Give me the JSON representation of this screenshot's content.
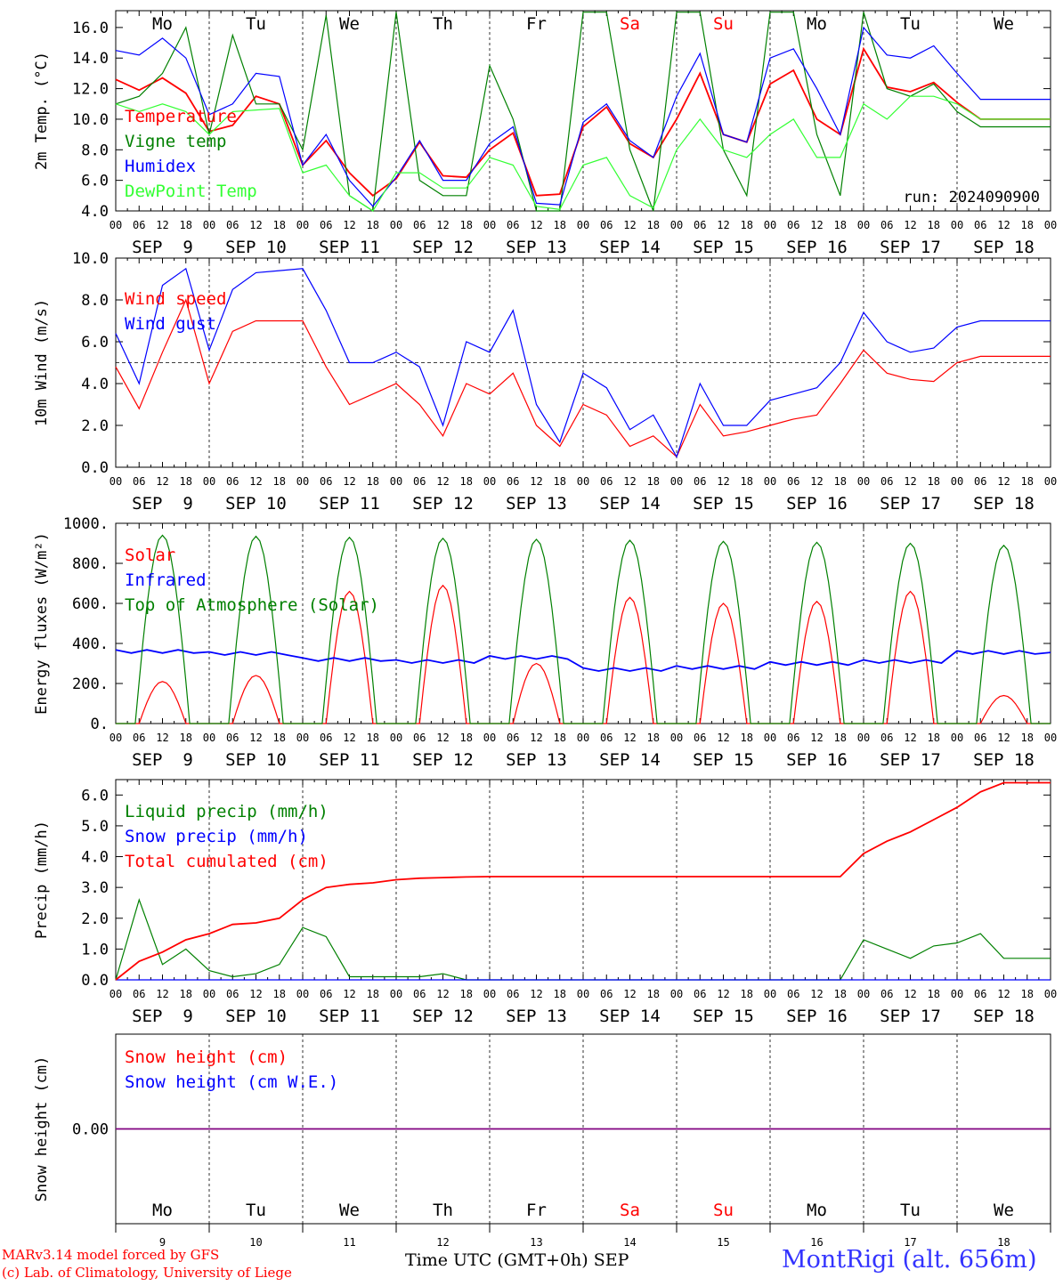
{
  "days": [
    {
      "dow": "Mo",
      "date": "SEP  9",
      "num": "9",
      "weekend": false
    },
    {
      "dow": "Tu",
      "date": "SEP 10",
      "num": "10",
      "weekend": false
    },
    {
      "dow": "We",
      "date": "SEP 11",
      "num": "11",
      "weekend": false
    },
    {
      "dow": "Th",
      "date": "SEP 12",
      "num": "12",
      "weekend": false
    },
    {
      "dow": "Fr",
      "date": "SEP 13",
      "num": "13",
      "weekend": false
    },
    {
      "dow": "Sa",
      "date": "SEP 14",
      "num": "14",
      "weekend": true
    },
    {
      "dow": "Su",
      "date": "SEP 15",
      "num": "15",
      "weekend": true
    },
    {
      "dow": "Mo",
      "date": "SEP 16",
      "num": "16",
      "weekend": false
    },
    {
      "dow": "Tu",
      "date": "SEP 17",
      "num": "17",
      "weekend": false
    },
    {
      "dow": "We",
      "date": "SEP 18",
      "num": "18",
      "weekend": false
    }
  ],
  "hour_labels": [
    "00",
    "06",
    "12",
    "18"
  ],
  "footer": {
    "credit_line1": "MARv3.14 model forced by GFS",
    "credit_line2": "(c) Lab. of Climatology, University of Liege",
    "xlabel": "Time UTC (GMT+0h)",
    "month": "SEP",
    "station": "MontRigi (alt. 656m)"
  },
  "colors": {
    "red": "#ff0000",
    "green": "#008000",
    "blue": "#0000ff",
    "lightgreen": "#33ff33",
    "purple": "#800080"
  },
  "chart_data": [
    {
      "type": "line",
      "ylabel": "2m Temp. (°C)",
      "ylim": [
        4,
        17.1
      ],
      "yticks": [
        "4.0",
        "6.0",
        "8.0",
        "10.0",
        "12.0",
        "14.0",
        "16.0"
      ],
      "annotation": "run: 2024090900",
      "x_hours": [
        0,
        6,
        12,
        18,
        24,
        30,
        36,
        42,
        48,
        54,
        60,
        66,
        72,
        78,
        84,
        90,
        96,
        102,
        108,
        114,
        120,
        126,
        132,
        138,
        144,
        150,
        156,
        162,
        168,
        174,
        180,
        186,
        192,
        198,
        204,
        210,
        216,
        222,
        228,
        234
      ],
      "series": [
        {
          "name": "Temperature",
          "color": "#ff0000",
          "values": [
            12.6,
            11.9,
            12.7,
            11.7,
            9.2,
            9.6,
            11.5,
            11.0,
            7.0,
            8.6,
            6.5,
            5.0,
            6.1,
            8.5,
            6.3,
            6.2,
            8.0,
            9.1,
            5.0,
            5.1,
            9.5,
            10.8,
            8.4,
            7.5,
            10.0,
            13.0,
            9.0,
            8.5,
            12.3,
            13.2,
            10.0,
            9.0,
            14.6,
            12.1,
            11.8,
            12.4,
            11.1,
            10.0,
            10.0,
            10.0
          ]
        },
        {
          "name": "Vigne temp",
          "color": "#008000",
          "values": [
            11.0,
            11.5,
            13.0,
            16.0,
            9.0,
            15.5,
            11.0,
            11.0,
            8.0,
            16.8,
            5.0,
            4.0,
            17.0,
            6.0,
            5.0,
            5.0,
            13.5,
            10.0,
            4.0,
            4.0,
            17.0,
            17.0,
            8.0,
            4.0,
            17.0,
            17.0,
            8.0,
            5.0,
            17.0,
            17.0,
            9.0,
            5.0,
            17.0,
            12.0,
            11.5,
            12.3,
            10.5,
            9.5,
            9.5,
            9.5
          ]
        },
        {
          "name": "Humidex",
          "color": "#0000ff",
          "values": [
            14.5,
            14.2,
            15.3,
            14.0,
            10.3,
            11.0,
            13.0,
            12.8,
            7.0,
            9.0,
            6.0,
            4.3,
            6.2,
            8.6,
            6.0,
            6.0,
            8.4,
            9.5,
            4.5,
            4.4,
            9.8,
            11.0,
            8.6,
            7.5,
            11.5,
            14.3,
            9.0,
            8.5,
            14.0,
            14.6,
            12.0,
            9.0,
            16.0,
            14.2,
            14.0,
            14.8,
            13.0,
            11.3,
            11.3,
            11.3
          ]
        },
        {
          "name": "DewPoint Temp",
          "color": "#33ff33",
          "values": [
            11.0,
            10.5,
            11.0,
            10.5,
            9.0,
            10.5,
            10.6,
            10.7,
            6.5,
            7.0,
            5.0,
            4.0,
            6.5,
            6.5,
            5.5,
            5.5,
            7.5,
            7.0,
            4.3,
            4.1,
            7.0,
            7.5,
            5.0,
            4.2,
            8.0,
            10.0,
            8.0,
            7.5,
            9.0,
            10.0,
            7.5,
            7.5,
            11.0,
            10.0,
            11.5,
            11.5,
            11.0,
            10.0,
            10.0,
            10.0
          ]
        }
      ]
    },
    {
      "type": "line",
      "ylabel": "10m Wind (m/s)",
      "ylim": [
        0,
        10
      ],
      "yticks": [
        "0.0",
        "2.0",
        "4.0",
        "6.0",
        "8.0",
        "10.0"
      ],
      "ref_line": 5,
      "x_hours": [
        0,
        6,
        12,
        18,
        24,
        30,
        36,
        42,
        48,
        54,
        60,
        66,
        72,
        78,
        84,
        90,
        96,
        102,
        108,
        114,
        120,
        126,
        132,
        138,
        144,
        150,
        156,
        162,
        168,
        174,
        180,
        186,
        192,
        198,
        204,
        210,
        216,
        222,
        228,
        234
      ],
      "series": [
        {
          "name": "Wind speed",
          "color": "#ff0000",
          "values": [
            4.8,
            2.8,
            5.5,
            8.0,
            4.0,
            6.5,
            7.0,
            7.0,
            7.0,
            4.8,
            3.0,
            3.5,
            4.0,
            3.0,
            1.5,
            4.0,
            3.5,
            4.5,
            2.0,
            1.0,
            3.0,
            2.5,
            1.0,
            1.5,
            0.5,
            3.0,
            1.5,
            1.7,
            2.0,
            2.3,
            2.5,
            4.0,
            5.6,
            4.5,
            4.2,
            4.1,
            5.0,
            5.3,
            5.3,
            5.3
          ]
        },
        {
          "name": "Wind gust",
          "color": "#0000ff",
          "values": [
            6.4,
            4.0,
            8.7,
            9.5,
            5.6,
            8.5,
            9.3,
            9.4,
            9.5,
            7.5,
            5.0,
            5.0,
            5.5,
            4.8,
            2.0,
            6.0,
            5.5,
            7.5,
            3.0,
            1.2,
            4.5,
            3.8,
            1.8,
            2.5,
            0.5,
            4.0,
            2.0,
            2.0,
            3.2,
            3.5,
            3.8,
            5.0,
            7.4,
            6.0,
            5.5,
            5.7,
            6.7,
            7.0,
            7.0,
            7.0
          ]
        }
      ]
    },
    {
      "type": "line",
      "ylabel": "Energy fluxes (W/m²)",
      "ylim": [
        0,
        1000
      ],
      "yticks": [
        "0.",
        "200.",
        "400.",
        "600.",
        "800.",
        "1000."
      ],
      "series": [
        {
          "name": "Solar",
          "color": "#ff0000",
          "daily_peak": [
            210,
            240,
            660,
            690,
            300,
            630,
            600,
            610,
            660,
            140
          ]
        },
        {
          "name": "Infrared",
          "color": "#0000ff",
          "daily_mean": [
            360,
            350,
            320,
            310,
            330,
            270,
            280,
            300,
            310,
            355
          ]
        },
        {
          "name": "Top of Atmosphere (Solar)",
          "color": "#008000",
          "daily_peak": [
            940,
            935,
            930,
            925,
            920,
            915,
            910,
            905,
            900,
            890
          ]
        }
      ]
    },
    {
      "type": "line",
      "ylabel": "Precip (mm/h)",
      "ylim": [
        0,
        6.5
      ],
      "yticks": [
        "0.0",
        "1.0",
        "2.0",
        "3.0",
        "4.0",
        "5.0",
        "6.0"
      ],
      "x_hours": [
        0,
        6,
        12,
        18,
        24,
        30,
        36,
        42,
        48,
        54,
        60,
        66,
        72,
        78,
        84,
        90,
        96,
        102,
        108,
        114,
        120,
        126,
        132,
        138,
        144,
        150,
        156,
        162,
        168,
        174,
        180,
        186,
        192,
        198,
        204,
        210,
        216,
        222,
        228,
        234
      ],
      "series": [
        {
          "name": "Liquid precip (mm/h)",
          "color": "#008000",
          "values": [
            0.0,
            2.6,
            0.5,
            1.0,
            0.3,
            0.1,
            0.2,
            0.5,
            1.7,
            1.4,
            0.1,
            0.1,
            0.1,
            0.1,
            0.2,
            0.0,
            0.0,
            0.0,
            0.0,
            0.0,
            0.0,
            0.0,
            0.0,
            0.0,
            0.0,
            0.0,
            0.0,
            0.0,
            0.0,
            0.0,
            0.0,
            0.0,
            1.3,
            1.0,
            0.7,
            1.1,
            1.2,
            1.5,
            0.7,
            0.7
          ]
        },
        {
          "name": "Snow precip (mm/h)",
          "color": "#0000ff",
          "values": [
            0,
            0,
            0,
            0,
            0,
            0,
            0,
            0,
            0,
            0,
            0,
            0,
            0,
            0,
            0,
            0,
            0,
            0,
            0,
            0,
            0,
            0,
            0,
            0,
            0,
            0,
            0,
            0,
            0,
            0,
            0,
            0,
            0,
            0,
            0,
            0,
            0,
            0,
            0,
            0
          ]
        },
        {
          "name": "Total cumulated (cm)",
          "color": "#ff0000",
          "values": [
            0.0,
            0.6,
            0.9,
            1.3,
            1.5,
            1.8,
            1.85,
            2.0,
            2.6,
            3.0,
            3.1,
            3.15,
            3.25,
            3.3,
            3.32,
            3.34,
            3.35,
            3.35,
            3.35,
            3.35,
            3.35,
            3.35,
            3.35,
            3.35,
            3.35,
            3.35,
            3.35,
            3.35,
            3.35,
            3.35,
            3.35,
            3.35,
            4.1,
            4.5,
            4.8,
            5.2,
            5.6,
            6.1,
            6.4,
            6.4
          ]
        }
      ]
    },
    {
      "type": "line",
      "ylabel": "Snow height (cm)",
      "ylim": [
        -1,
        1
      ],
      "yticks": [
        "0.00"
      ],
      "series": [
        {
          "name": "Snow height (cm)",
          "color": "#ff0000",
          "values": [
            0,
            0
          ]
        },
        {
          "name": "Snow height (cm W.E.)",
          "color": "#0000ff",
          "values": [
            0,
            0
          ]
        }
      ]
    }
  ]
}
